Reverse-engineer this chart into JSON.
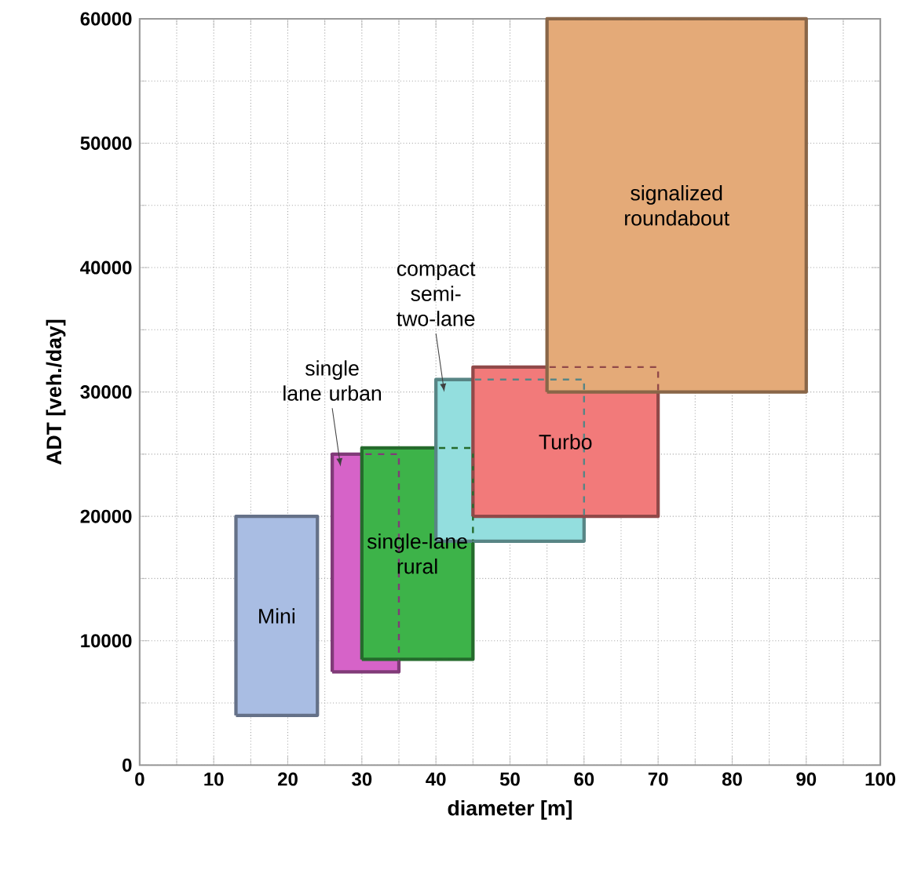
{
  "chart_data": {
    "type": "area",
    "xlabel": "diameter [m]",
    "ylabel": "ADT  [veh./day]",
    "xlim": [
      0,
      100
    ],
    "xticks": [
      0,
      10,
      20,
      30,
      40,
      50,
      60,
      70,
      80,
      90,
      100
    ],
    "ylim": [
      0,
      60000
    ],
    "yticks": [
      0,
      10000,
      20000,
      30000,
      40000,
      50000,
      60000
    ],
    "grid": true,
    "series": [
      {
        "name": "Mini",
        "color": "#a9bde3",
        "x": [
          13,
          13,
          24,
          24,
          13
        ],
        "values": [
          4000,
          20000,
          20000,
          4000,
          4000
        ]
      },
      {
        "name": "single lane urban",
        "color": "#d663c8",
        "x": [
          26,
          26,
          35,
          35,
          26
        ],
        "values": [
          7500,
          25000,
          25000,
          7500,
          7500
        ]
      },
      {
        "name": "single-lane rural",
        "color": "#3db349",
        "x": [
          30,
          30,
          45,
          45,
          30
        ],
        "values": [
          8500,
          25500,
          25500,
          8500,
          8500
        ]
      },
      {
        "name": "compact semi-two-lane",
        "color": "#93dede",
        "x": [
          40,
          40,
          60,
          60,
          40
        ],
        "values": [
          18000,
          31000,
          31000,
          18000,
          18000
        ]
      },
      {
        "name": "Turbo",
        "color": "#f27a7a",
        "x": [
          45,
          45,
          70,
          70,
          45
        ],
        "values": [
          20000,
          32000,
          32000,
          20000,
          20000
        ]
      },
      {
        "name": "signalized roundabout",
        "color": "#e4aa78",
        "x": [
          55,
          55,
          90,
          90,
          55
        ],
        "values": [
          30000,
          60000,
          60000,
          30000,
          30000
        ]
      }
    ]
  }
}
